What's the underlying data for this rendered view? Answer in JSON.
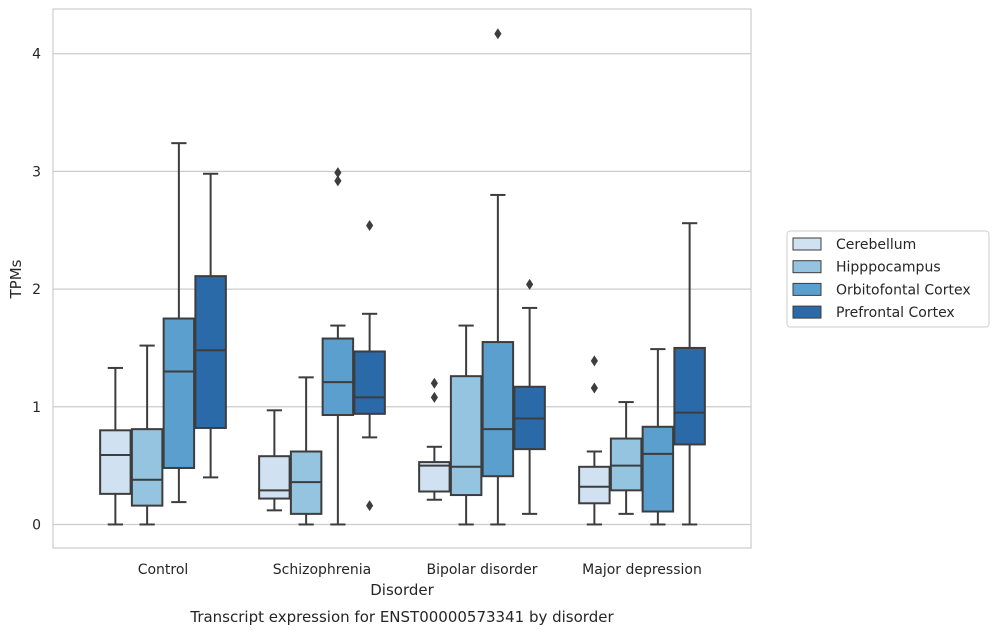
{
  "chart_data": {
    "type": "box",
    "title": "Transcript expression for ENST00000573341 by disorder",
    "xlabel": "Disorder",
    "ylabel": "TPMs",
    "ylim": [
      -0.2,
      4.38
    ],
    "yticks": [
      0,
      1,
      2,
      3,
      4
    ],
    "grid": "horizontal",
    "legend_position": "right",
    "categories": [
      "Control",
      "Schizophrenia",
      "Bipolar disorder",
      "Major depression"
    ],
    "series": [
      {
        "name": "Cerebellum",
        "color": "#d0e1f1",
        "boxes": [
          {
            "whisker_low": 0.0,
            "q1": 0.26,
            "median": 0.59,
            "q3": 0.8,
            "whisker_high": 1.33,
            "outliers": []
          },
          {
            "whisker_low": 0.12,
            "q1": 0.22,
            "median": 0.29,
            "q3": 0.58,
            "whisker_high": 0.97,
            "outliers": []
          },
          {
            "whisker_low": 0.21,
            "q1": 0.28,
            "median": 0.5,
            "q3": 0.53,
            "whisker_high": 0.66,
            "outliers": [
              1.08,
              1.2
            ]
          },
          {
            "whisker_low": 0.0,
            "q1": 0.18,
            "median": 0.32,
            "q3": 0.49,
            "whisker_high": 0.62,
            "outliers": [
              1.16,
              1.39
            ]
          }
        ]
      },
      {
        "name": "Hipppocampus",
        "color": "#94c4df",
        "boxes": [
          {
            "whisker_low": 0.0,
            "q1": 0.16,
            "median": 0.38,
            "q3": 0.81,
            "whisker_high": 1.52,
            "outliers": []
          },
          {
            "whisker_low": 0.0,
            "q1": 0.09,
            "median": 0.36,
            "q3": 0.62,
            "whisker_high": 1.25,
            "outliers": []
          },
          {
            "whisker_low": 0.0,
            "q1": 0.25,
            "median": 0.49,
            "q3": 1.26,
            "whisker_high": 1.69,
            "outliers": []
          },
          {
            "whisker_low": 0.09,
            "q1": 0.29,
            "median": 0.5,
            "q3": 0.73,
            "whisker_high": 1.04,
            "outliers": []
          }
        ]
      },
      {
        "name": "Orbitofontal Cortex",
        "color": "#5a9fcd",
        "boxes": [
          {
            "whisker_low": 0.19,
            "q1": 0.48,
            "median": 1.3,
            "q3": 1.75,
            "whisker_high": 3.24,
            "outliers": []
          },
          {
            "whisker_low": 0.0,
            "q1": 0.93,
            "median": 1.21,
            "q3": 1.58,
            "whisker_high": 1.69,
            "outliers": [
              2.92,
              2.99
            ]
          },
          {
            "whisker_low": 0.0,
            "q1": 0.41,
            "median": 0.81,
            "q3": 1.55,
            "whisker_high": 2.8,
            "outliers": [
              4.17
            ]
          },
          {
            "whisker_low": 0.0,
            "q1": 0.11,
            "median": 0.6,
            "q3": 0.83,
            "whisker_high": 1.49,
            "outliers": []
          }
        ]
      },
      {
        "name": "Prefrontal Cortex",
        "color": "#2b6aa9",
        "boxes": [
          {
            "whisker_low": 0.4,
            "q1": 0.82,
            "median": 1.48,
            "q3": 2.11,
            "whisker_high": 2.98,
            "outliers": []
          },
          {
            "whisker_low": 0.74,
            "q1": 0.94,
            "median": 1.08,
            "q3": 1.47,
            "whisker_high": 1.79,
            "outliers": [
              0.16,
              2.54
            ]
          },
          {
            "whisker_low": 0.09,
            "q1": 0.64,
            "median": 0.9,
            "q3": 1.17,
            "whisker_high": 1.84,
            "outliers": [
              2.04
            ]
          },
          {
            "whisker_low": 0.0,
            "q1": 0.68,
            "median": 0.95,
            "q3": 1.5,
            "whisker_high": 2.56,
            "outliers": []
          }
        ]
      }
    ]
  }
}
